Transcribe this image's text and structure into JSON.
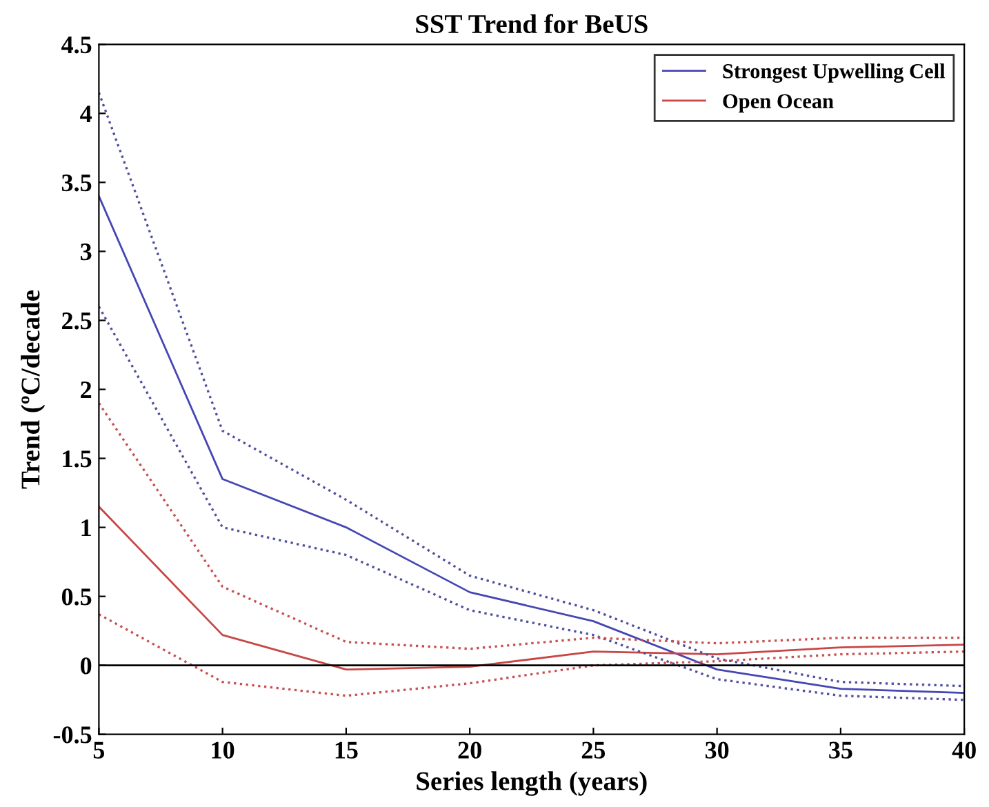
{
  "chart_data": {
    "type": "line",
    "title": "SST Trend for BeUS",
    "xlabel": "Series length (years)",
    "ylabel": "Trend (ºC/decade",
    "x": [
      5,
      10,
      15,
      20,
      25,
      30,
      35,
      40
    ],
    "series": [
      {
        "name": "Strongest Upwelling Cell",
        "color": "#4646b4",
        "values": [
          3.4,
          1.35,
          1.0,
          0.53,
          0.32,
          -0.03,
          -0.17,
          -0.2
        ]
      },
      {
        "name": "Open Ocean",
        "color": "#c84646",
        "values": [
          1.15,
          0.22,
          -0.03,
          -0.01,
          0.1,
          0.08,
          0.13,
          0.15
        ]
      },
      {
        "color": "#5050a0",
        "line_style": "dotted",
        "values": [
          4.15,
          1.7,
          1.2,
          0.65,
          0.4,
          0.05,
          -0.12,
          -0.15
        ]
      },
      {
        "color": "#5050a0",
        "line_style": "dotted",
        "values": [
          2.6,
          1.0,
          0.8,
          0.4,
          0.22,
          -0.1,
          -0.22,
          -0.25
        ]
      },
      {
        "color": "#c85050",
        "line_style": "dotted",
        "values": [
          1.9,
          0.57,
          0.17,
          0.12,
          0.2,
          0.16,
          0.2,
          0.2
        ]
      },
      {
        "color": "#c85050",
        "line_style": "dotted",
        "values": [
          0.37,
          -0.12,
          -0.22,
          -0.13,
          0.0,
          0.03,
          0.08,
          0.1
        ]
      }
    ],
    "ref_lines": [
      {
        "axis": "y",
        "value": 0,
        "color": "#000000",
        "line_style": "solid"
      }
    ],
    "xlim": [
      5,
      40
    ],
    "xticks": [
      5,
      10,
      15,
      20,
      25,
      30,
      35,
      40
    ],
    "ylim": [
      -0.5,
      4.5
    ],
    "yticks": [
      -0.5,
      0,
      0.5,
      1,
      1.5,
      2,
      2.5,
      3,
      3.5,
      4,
      4.5
    ],
    "legend": "top right",
    "grid": false
  }
}
